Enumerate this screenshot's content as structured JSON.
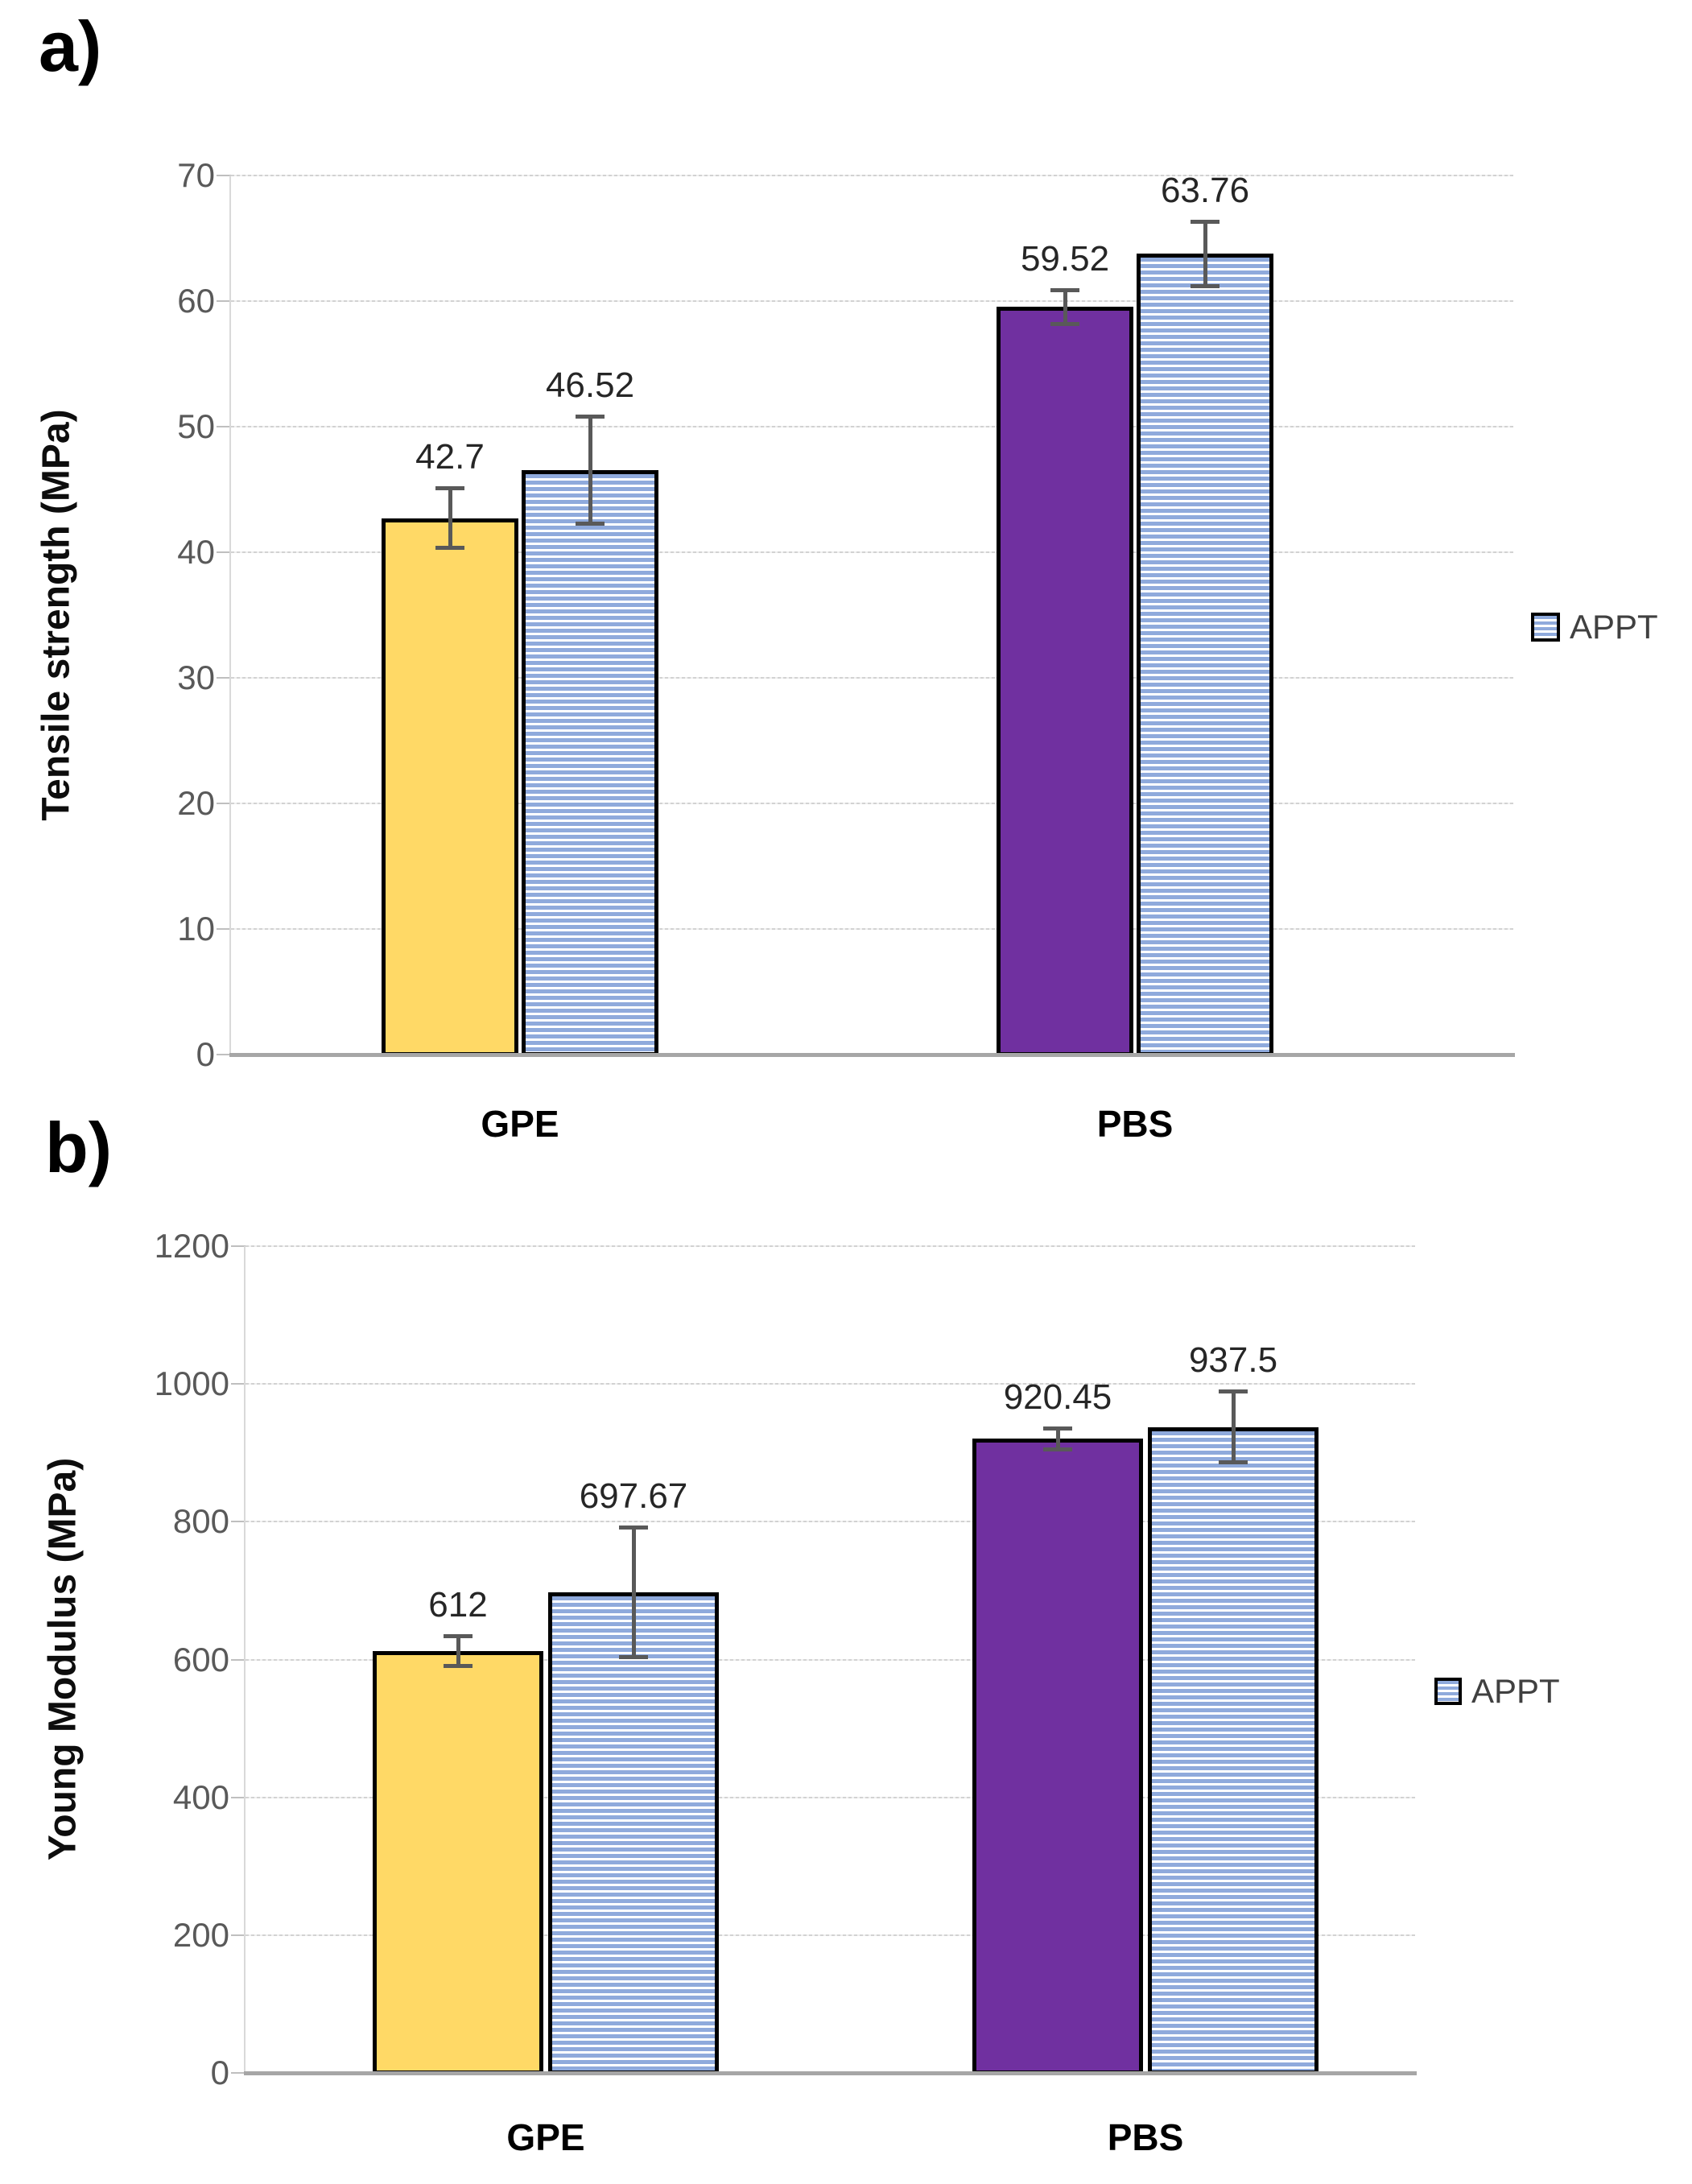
{
  "colors": {
    "background": "#ffffff",
    "bar_yellow": "#FFD966",
    "bar_purple": "#7030A0",
    "stripe_blue": "#8FAADC",
    "stripe_background": "#ffffff",
    "bar_border": "#000000",
    "error_bar": "#595959",
    "gridline": "#d2d2d2",
    "y_axis_line": "#d9d9d9",
    "baseline": "#a6a6a6",
    "tick_text": "#595959",
    "value_text": "#262626",
    "category_text": "#000000",
    "legend_text": "#404040"
  },
  "chart_data": [
    {
      "type": "bar",
      "panel_label": "a)",
      "title": "",
      "xlabel": "",
      "ylabel": "Tensile strength (MPa)",
      "ylim": [
        0,
        70
      ],
      "yticks": [
        0,
        10,
        20,
        30,
        40,
        50,
        60,
        70
      ],
      "ytick_labels": [
        "0",
        "10",
        "20",
        "30",
        "40",
        "50",
        "60",
        "70"
      ],
      "grid": true,
      "categories": [
        "GPE",
        "PBS"
      ],
      "series": [
        {
          "name": "",
          "pattern": "solid",
          "in_legend": false,
          "values": [
            42.7,
            59.52
          ],
          "errors": [
            2.4,
            1.4
          ],
          "data_labels": [
            "42.7",
            "59.52"
          ],
          "fills": [
            "#FFD966",
            "#7030A0"
          ]
        },
        {
          "name": "APPT",
          "pattern": "horizontal-stripes",
          "in_legend": true,
          "values": [
            46.52,
            63.76
          ],
          "errors": [
            4.3,
            2.6
          ],
          "data_labels": [
            "46.52",
            "63.76"
          ],
          "fills": [
            "stripes",
            "stripes"
          ]
        }
      ],
      "legend": {
        "label": "APPT",
        "position": "right"
      }
    },
    {
      "type": "bar",
      "panel_label": "b)",
      "title": "",
      "xlabel": "",
      "ylabel": "Young Modulus (MPa)",
      "ylim": [
        0,
        1200
      ],
      "yticks": [
        0,
        200,
        400,
        600,
        800,
        1000,
        1200
      ],
      "ytick_labels": [
        "0",
        "200",
        "400",
        "600",
        "800",
        "1000",
        "1200"
      ],
      "grid": true,
      "categories": [
        "GPE",
        "PBS"
      ],
      "series": [
        {
          "name": "",
          "pattern": "solid",
          "in_legend": false,
          "values": [
            612,
            920.45
          ],
          "errors": [
            22,
            16
          ],
          "data_labels": [
            "612",
            "920.45"
          ],
          "fills": [
            "#FFD966",
            "#7030A0"
          ]
        },
        {
          "name": "APPT",
          "pattern": "horizontal-stripes",
          "in_legend": true,
          "values": [
            697.67,
            937.5
          ],
          "errors": [
            95,
            52
          ],
          "data_labels": [
            "697.67",
            "937.5"
          ],
          "fills": [
            "stripes",
            "stripes"
          ]
        }
      ],
      "legend": {
        "label": "APPT",
        "position": "right"
      }
    }
  ]
}
